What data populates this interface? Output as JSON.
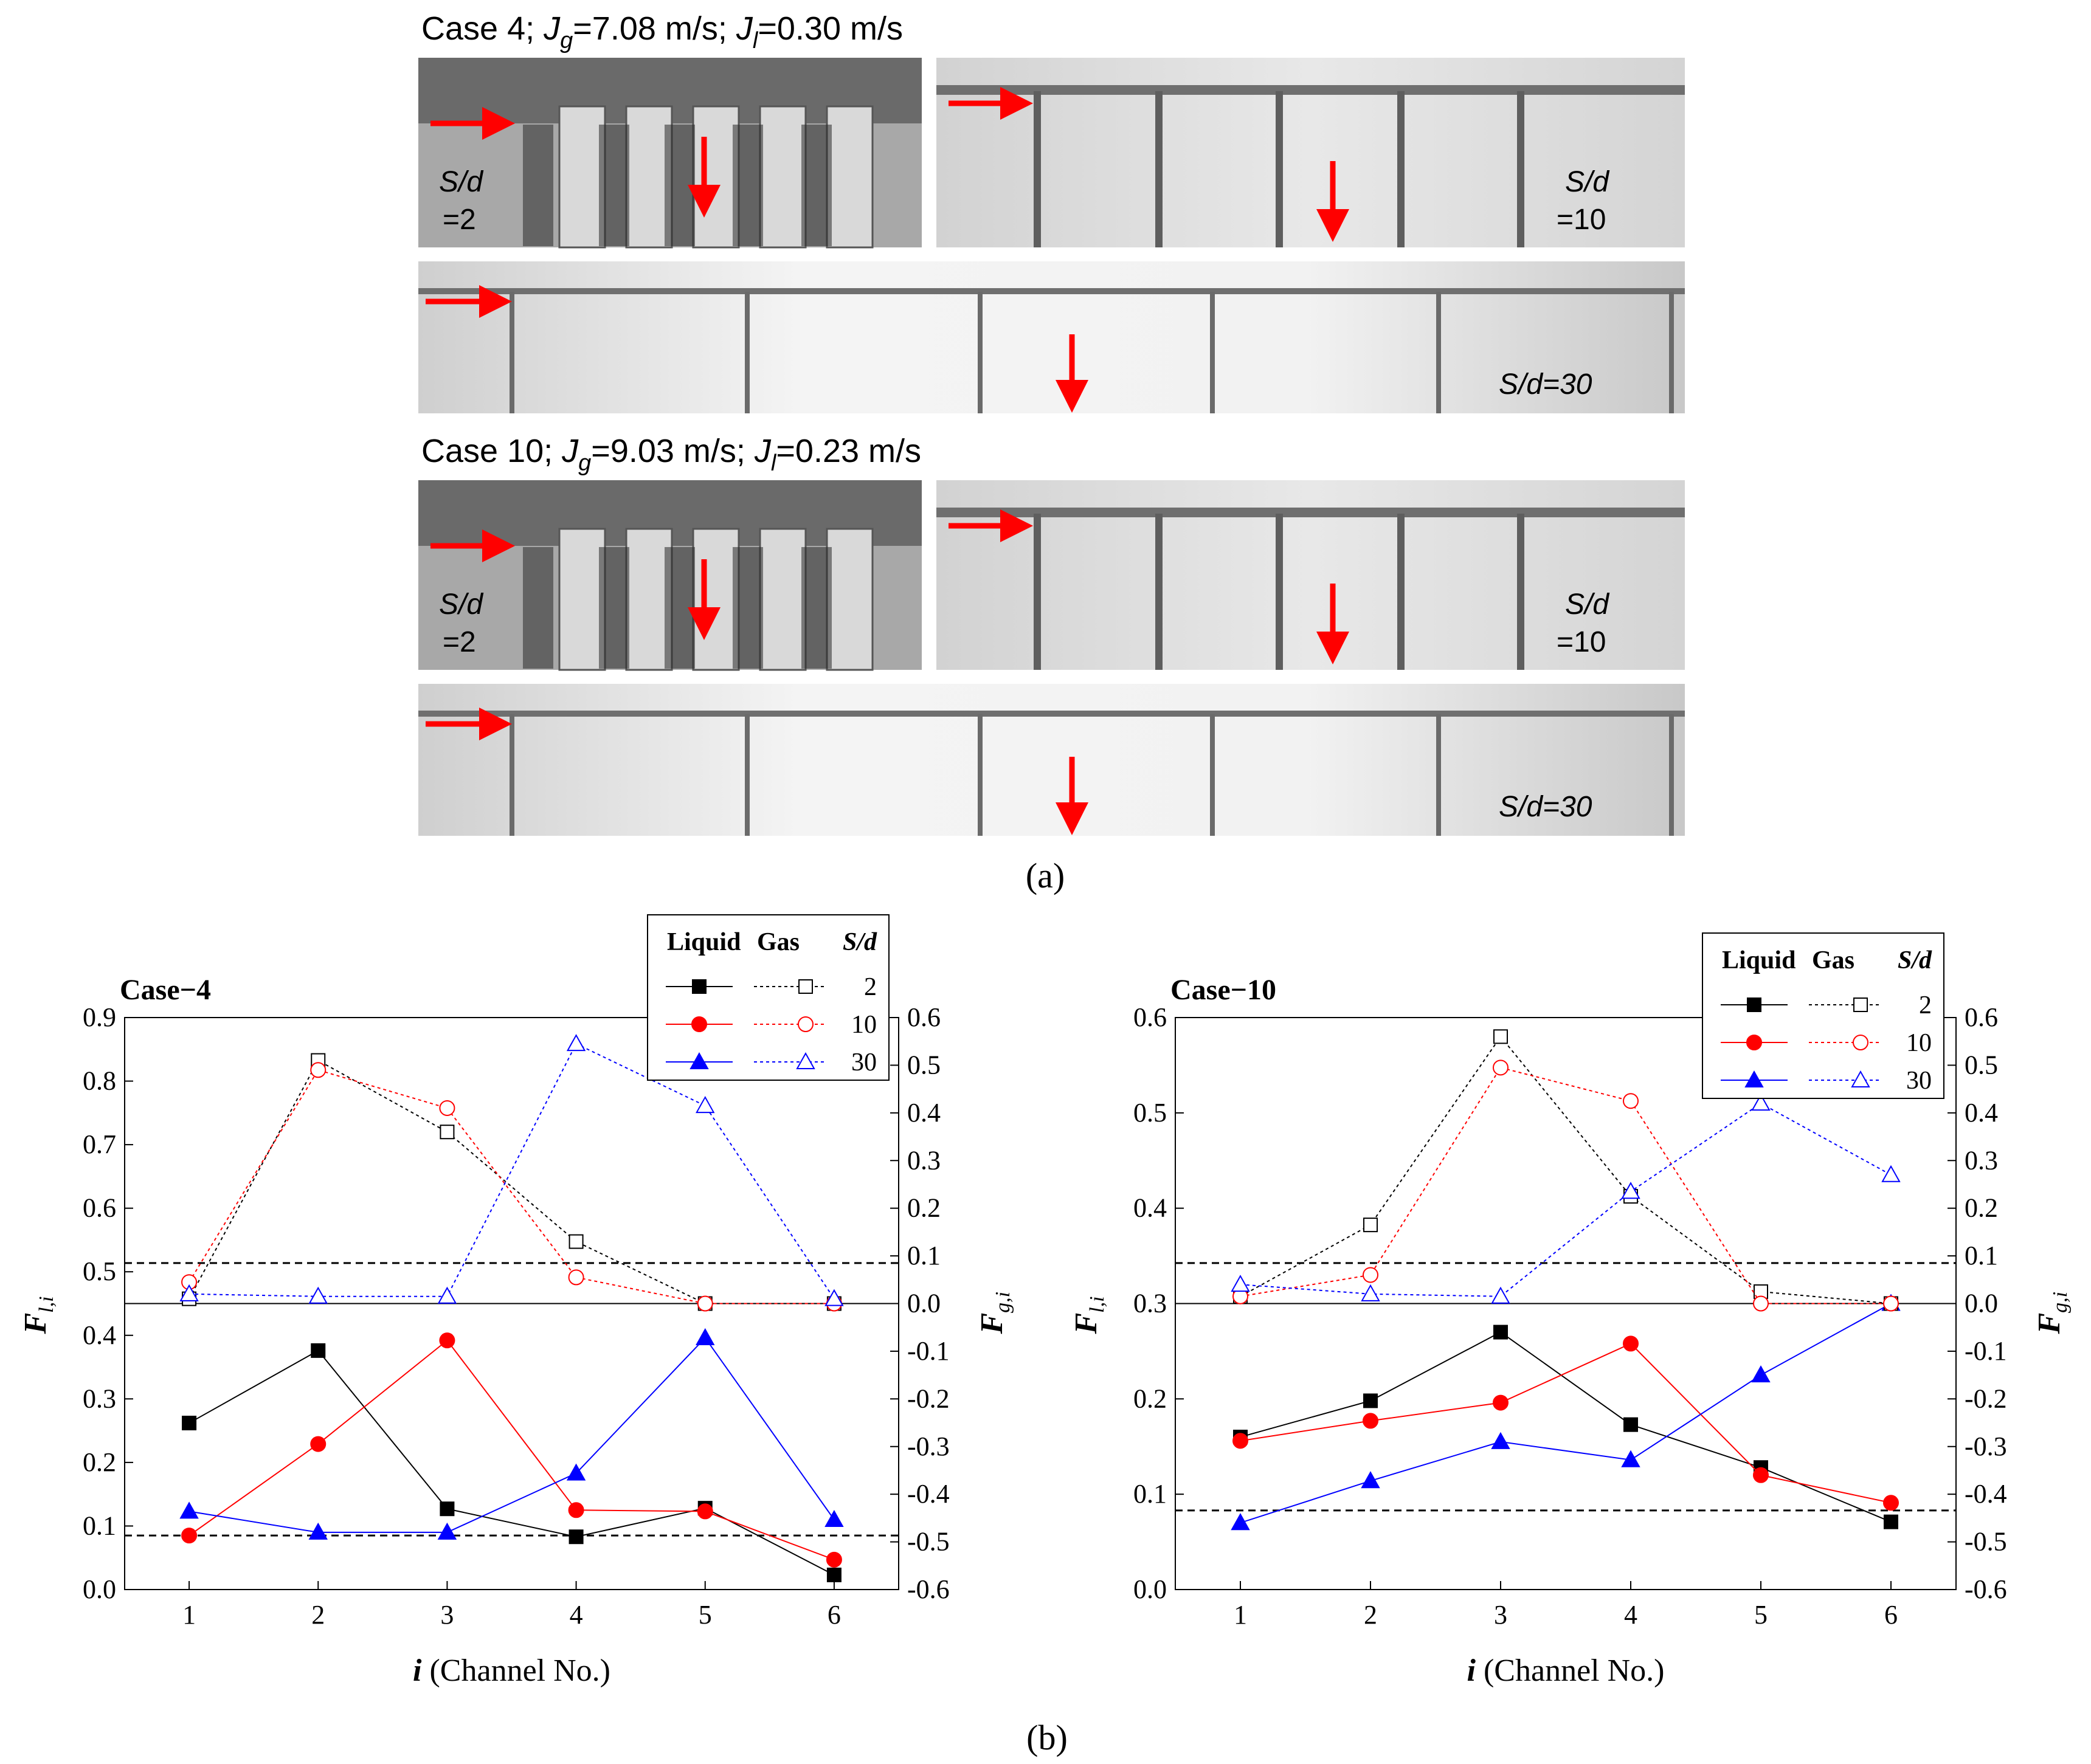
{
  "panel_a": {
    "rows": [
      {
        "case": "Case 4",
        "jg_value": "=7.08 m/s;",
        "jl_value": "=0.30 m/s",
        "sd_left": "S/d",
        "sd_left_val": "=2",
        "sd_right": "S/d",
        "sd_right_val": "=10",
        "sd_bottom": "S/d=30"
      },
      {
        "case": "Case 10",
        "jg_value": "=9.03 m/s;",
        "jl_value": "=0.23 m/s",
        "sd_left": "S/d",
        "sd_left_val": "=2",
        "sd_right": "S/d",
        "sd_right_val": "=10",
        "sd_bottom": "S/d=30"
      }
    ],
    "jg_symbol": "J",
    "jg_sub": "g",
    "jl_symbol": "J",
    "jl_sub": "l",
    "label": "(a)"
  },
  "panel_b_label": "(b)",
  "colors": {
    "series_2": "#000000",
    "series_10": "#ff0000",
    "series_30": "#0000ff",
    "arrow": "#ff0000"
  },
  "chart_data": [
    {
      "type": "line",
      "title": "Case−4",
      "xlabel": "i (Channel No.)",
      "xlabel_italic": "i",
      "xlabel_rest": " (Channel No.)",
      "ylabel_left": "F l,i",
      "ylabel_right": "F g,i",
      "x": [
        1,
        2,
        3,
        4,
        5,
        6
      ],
      "xlim": [
        0.5,
        6.5
      ],
      "ylim_left": [
        0.0,
        0.9
      ],
      "ylim_right": [
        -0.6,
        0.6
      ],
      "yticks_left": [
        "0.0",
        "0.1",
        "0.2",
        "0.3",
        "0.4",
        "0.5",
        "0.6",
        "0.7",
        "0.8",
        "0.9"
      ],
      "yticks_right": [
        "-0.6",
        "-0.5",
        "-0.4",
        "-0.3",
        "-0.2",
        "-0.1",
        "0.0",
        "0.1",
        "0.2",
        "0.3",
        "0.4",
        "0.5",
        "0.6"
      ],
      "legend": {
        "headers": [
          "Liquid",
          "Gas",
          "S/d"
        ],
        "labels": [
          "2",
          "10",
          "30"
        ],
        "placement": "top-right"
      },
      "reference_lines": {
        "liquid_left": 0.085,
        "gas_right": 0.085
      },
      "series": [
        {
          "phase": "liquid",
          "sd": "2",
          "color": "#000000",
          "marker": "square-filled",
          "values": [
            0.262,
            0.376,
            0.127,
            0.083,
            0.128,
            0.023
          ]
        },
        {
          "phase": "liquid",
          "sd": "10",
          "color": "#ff0000",
          "marker": "circle-filled",
          "values": [
            0.085,
            0.229,
            0.392,
            0.125,
            0.123,
            0.047
          ]
        },
        {
          "phase": "liquid",
          "sd": "30",
          "color": "#0000ff",
          "marker": "triangle-filled",
          "values": [
            0.123,
            0.09,
            0.09,
            0.183,
            0.396,
            0.11
          ]
        },
        {
          "phase": "gas",
          "sd": "2",
          "color": "#000000",
          "marker": "square-open",
          "values": [
            0.01,
            0.51,
            0.36,
            0.13,
            0.0,
            0.0
          ]
        },
        {
          "phase": "gas",
          "sd": "10",
          "color": "#ff0000",
          "marker": "circle-open",
          "values": [
            0.045,
            0.49,
            0.41,
            0.055,
            0.0,
            0.0
          ]
        },
        {
          "phase": "gas",
          "sd": "30",
          "color": "#0000ff",
          "marker": "triangle-open",
          "values": [
            0.02,
            0.015,
            0.015,
            0.545,
            0.415,
            0.01
          ]
        }
      ]
    },
    {
      "type": "line",
      "title": "Case−10",
      "xlabel": "i (Channel No.)",
      "xlabel_italic": "i",
      "xlabel_rest": " (Channel No.)",
      "ylabel_left": "F l,i",
      "ylabel_right": "F g,i",
      "x": [
        1,
        2,
        3,
        4,
        5,
        6
      ],
      "xlim": [
        0.5,
        6.5
      ],
      "ylim_left": [
        0.0,
        0.6
      ],
      "ylim_right": [
        -0.6,
        0.6
      ],
      "yticks_left": [
        "0.0",
        "0.1",
        "0.2",
        "0.3",
        "0.4",
        "0.5",
        "0.6"
      ],
      "yticks_right": [
        "-0.6",
        "-0.5",
        "-0.4",
        "-0.3",
        "-0.2",
        "-0.1",
        "0.0",
        "0.1",
        "0.2",
        "0.3",
        "0.4",
        "0.5",
        "0.6"
      ],
      "legend": {
        "headers": [
          "Liquid",
          "Gas",
          "S/d"
        ],
        "labels": [
          "2",
          "10",
          "30"
        ],
        "placement": "top-right"
      },
      "reference_lines": {
        "liquid_left": 0.083,
        "gas_right": 0.085
      },
      "series": [
        {
          "phase": "liquid",
          "sd": "2",
          "color": "#000000",
          "marker": "square-filled",
          "values": [
            0.16,
            0.198,
            0.27,
            0.173,
            0.128,
            0.071
          ]
        },
        {
          "phase": "liquid",
          "sd": "10",
          "color": "#ff0000",
          "marker": "circle-filled",
          "values": [
            0.156,
            0.177,
            0.196,
            0.258,
            0.12,
            0.091
          ]
        },
        {
          "phase": "liquid",
          "sd": "30",
          "color": "#0000ff",
          "marker": "triangle-filled",
          "values": [
            0.07,
            0.114,
            0.155,
            0.136,
            0.225,
            0.3
          ]
        },
        {
          "phase": "gas",
          "sd": "2",
          "color": "#000000",
          "marker": "square-open",
          "values": [
            0.015,
            0.165,
            0.56,
            0.225,
            0.025,
            0.0
          ]
        },
        {
          "phase": "gas",
          "sd": "10",
          "color": "#ff0000",
          "marker": "circle-open",
          "values": [
            0.015,
            0.06,
            0.495,
            0.425,
            0.0,
            0.0
          ]
        },
        {
          "phase": "gas",
          "sd": "30",
          "color": "#0000ff",
          "marker": "triangle-open",
          "values": [
            0.04,
            0.02,
            0.015,
            0.235,
            0.42,
            0.27
          ]
        }
      ]
    }
  ]
}
